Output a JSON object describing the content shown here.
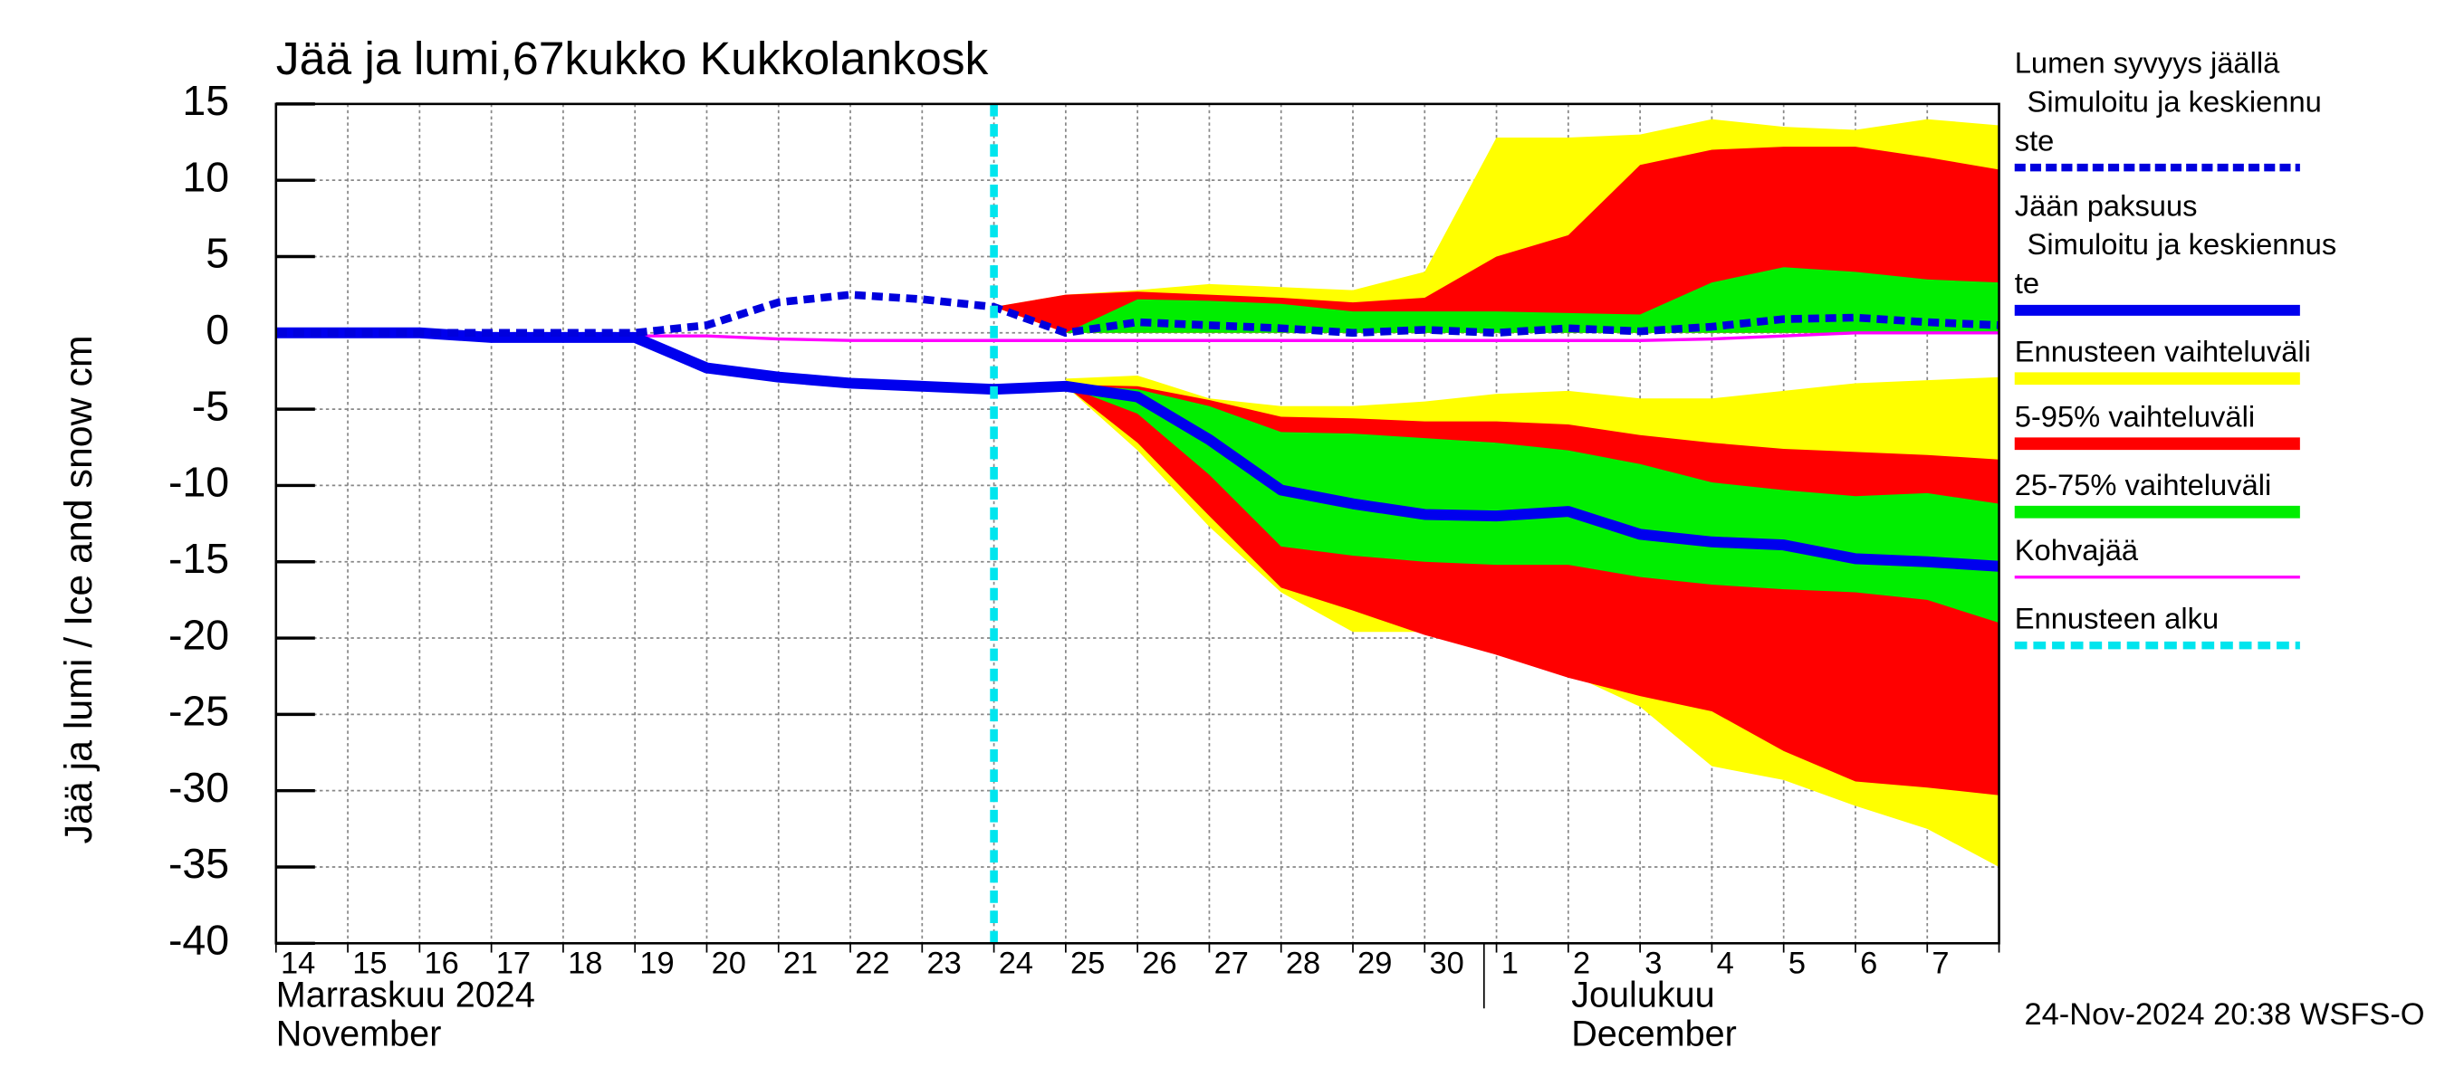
{
  "chart_data": {
    "type": "line",
    "title": "Jää ja lumi,67kukko Kukkolankosk",
    "y_label": "Jää ja lumi / Ice and snow    cm",
    "x": [
      "14",
      "15",
      "16",
      "17",
      "18",
      "19",
      "20",
      "21",
      "22",
      "23",
      "24",
      "25",
      "26",
      "27",
      "28",
      "29",
      "30",
      "1",
      "2",
      "3",
      "4",
      "5",
      "6",
      "7",
      null
    ],
    "month_labels": [
      [
        "Marraskuu 2024",
        "November"
      ],
      [
        "Joulukuu",
        "December"
      ]
    ],
    "footer": "24-Nov-2024 20:38 WSFS-O",
    "ylim": [
      -40,
      15
    ],
    "yticks": [
      15,
      10,
      5,
      0,
      -5,
      -10,
      -15,
      -20,
      -25,
      -30,
      -35,
      -40
    ],
    "grid": true,
    "series": [
      {
        "name": [
          "Lumen syvyys jäällä",
          "Simuloitu ja keskiennu",
          "ste"
        ],
        "color": "#0000dd",
        "style": "dashed",
        "values": [
          0,
          0,
          0,
          0,
          0,
          0,
          0.5,
          2,
          2.5,
          2.2,
          1.7,
          0,
          0.7,
          0.5,
          0.3,
          0,
          0.2,
          0,
          0.3,
          0.1,
          0.4,
          0.9,
          1,
          0.7,
          0.5
        ]
      },
      {
        "name": [
          "Jään paksuus",
          "Simuloitu ja keskiennus",
          "te"
        ],
        "color": "#0000ee",
        "style": "solid",
        "values": [
          0,
          0,
          0,
          -0.3,
          -0.3,
          -0.3,
          -2.3,
          -2.9,
          -3.3,
          -3.5,
          -3.7,
          -3.5,
          -4.2,
          -7,
          -10.3,
          -11.2,
          -11.9,
          -12,
          -11.7,
          -13.2,
          -13.7,
          -13.9,
          -14.8,
          -15,
          -15.3
        ]
      },
      {
        "name": [
          "Ennusteen vaihteluväli"
        ],
        "color": "#ffff00",
        "style": "band",
        "ranges": [
          {
            "high": [
              null,
              null,
              null,
              null,
              null,
              null,
              null,
              null,
              null,
              null,
              1.7,
              2.5,
              2.8,
              3.2,
              3,
              2.8,
              4,
              12.8,
              12.8,
              13,
              14,
              13.5,
              13.3,
              14,
              13.6
            ],
            "low": [
              null,
              null,
              null,
              null,
              null,
              null,
              null,
              null,
              null,
              null,
              1.7,
              0,
              0,
              0,
              0,
              0,
              0,
              0,
              0,
              0,
              0,
              0,
              0,
              0,
              0
            ]
          },
          {
            "high": [
              null,
              null,
              null,
              null,
              null,
              null,
              null,
              null,
              null,
              null,
              null,
              -3,
              -2.8,
              -4.3,
              -4.8,
              -4.8,
              -4.5,
              -4,
              -3.8,
              -4.3,
              -4.3,
              -3.8,
              -3.3,
              -3.1,
              -2.9
            ],
            "low": [
              null,
              null,
              null,
              null,
              null,
              null,
              null,
              null,
              null,
              null,
              null,
              -3.5,
              -7.7,
              -12.7,
              -17,
              -19.6,
              -19.6,
              -20.5,
              -22.3,
              -24.5,
              -28.4,
              -29.3,
              -31,
              -32.5,
              -35
            ]
          }
        ]
      },
      {
        "name": [
          "5-95% vaihteluväli"
        ],
        "color": "#ff0000",
        "style": "band",
        "ranges": [
          {
            "high": [
              null,
              null,
              null,
              null,
              null,
              null,
              null,
              null,
              null,
              null,
              1.7,
              2.5,
              2.7,
              2.5,
              2.3,
              2,
              2.3,
              5,
              6.4,
              11,
              12,
              12.2,
              12.2,
              11.5,
              10.7
            ],
            "low": [
              null,
              null,
              null,
              null,
              null,
              null,
              null,
              null,
              null,
              null,
              1.7,
              0,
              0,
              0,
              0,
              0,
              0,
              0,
              0,
              0,
              0,
              0,
              0,
              0,
              0
            ]
          },
          {
            "high": [
              null,
              null,
              null,
              null,
              null,
              null,
              null,
              null,
              null,
              null,
              null,
              -3.4,
              -3.5,
              -4.4,
              -5.5,
              -5.6,
              -5.8,
              -5.8,
              -6,
              -6.7,
              -7.2,
              -7.6,
              -7.8,
              -8,
              -8.3
            ],
            "low": [
              null,
              null,
              null,
              null,
              null,
              null,
              null,
              null,
              null,
              null,
              null,
              -3.5,
              -7.2,
              -12,
              -16.7,
              -18.2,
              -19.8,
              -21.1,
              -22.6,
              -23.8,
              -24.8,
              -27.4,
              -29.4,
              -29.8,
              -30.3
            ]
          }
        ]
      },
      {
        "name": [
          "25-75% vaihteluväli"
        ],
        "color": "#00ee00",
        "style": "band",
        "ranges": [
          {
            "high": [
              null,
              null,
              null,
              null,
              null,
              null,
              null,
              null,
              null,
              null,
              null,
              0,
              2.2,
              2.1,
              1.9,
              1.4,
              1.4,
              1.4,
              1.3,
              1.2,
              3.3,
              4.3,
              4,
              3.5,
              3.3
            ],
            "low": [
              null,
              null,
              null,
              null,
              null,
              null,
              null,
              null,
              null,
              null,
              null,
              0,
              0,
              0,
              0,
              0,
              0,
              0,
              0,
              0,
              0,
              0,
              0,
              0,
              0
            ]
          },
          {
            "high": [
              null,
              null,
              null,
              null,
              null,
              null,
              null,
              null,
              null,
              null,
              null,
              -3.4,
              -3.7,
              -4.8,
              -6.5,
              -6.6,
              -6.9,
              -7.2,
              -7.7,
              -8.6,
              -9.8,
              -10.3,
              -10.7,
              -10.5,
              -11.2
            ],
            "low": [
              null,
              null,
              null,
              null,
              null,
              null,
              null,
              null,
              null,
              null,
              null,
              -3.5,
              -5.3,
              -9.3,
              -14,
              -14.6,
              -15,
              -15.2,
              -15.2,
              -16,
              -16.5,
              -16.8,
              -17,
              -17.5,
              -19
            ]
          }
        ]
      },
      {
        "name": [
          "Kohvajää"
        ],
        "color": "#ff00ff",
        "style": "thin",
        "values": [
          -0.1,
          -0.1,
          -0.1,
          -0.1,
          -0.2,
          -0.2,
          -0.2,
          -0.4,
          -0.5,
          -0.5,
          -0.5,
          -0.5,
          -0.5,
          -0.5,
          -0.5,
          -0.5,
          -0.5,
          -0.5,
          -0.5,
          -0.5,
          -0.4,
          -0.2,
          0,
          0,
          0
        ]
      },
      {
        "name": [
          "Ennusteen alku"
        ],
        "color": "#00e5ee",
        "style": "vline",
        "x": 10
      }
    ]
  }
}
